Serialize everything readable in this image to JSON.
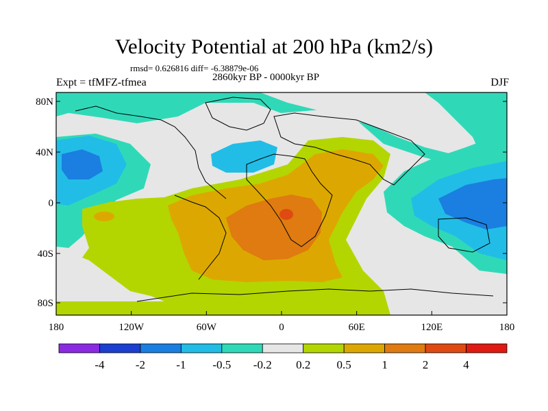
{
  "title": "Velocity Potential at 200 hPa (km2/s)",
  "stats": "rmsd= 0.626816 diff= -6.38879e-06",
  "experiment": "Expt = tfMFZ-tfmea",
  "period": "2860kyr BP - 0000kyr BP",
  "season": "DJF",
  "axes": {
    "y_ticks": [
      "80N",
      "40N",
      "0",
      "40S",
      "80S"
    ],
    "x_ticks": [
      "180",
      "120W",
      "60W",
      "0",
      "60E",
      "120E",
      "180"
    ]
  },
  "colorbar": {
    "labels": [
      "-4",
      "-2",
      "-1",
      "-0.5",
      "-0.2",
      "0.2",
      "0.5",
      "1",
      "2",
      "4"
    ],
    "colors": [
      "#8a2be2",
      "#1c3fd0",
      "#1a7fe0",
      "#21bde6",
      "#2fd9b8",
      "#e6e6e6",
      "#b3d600",
      "#dca800",
      "#df7b10",
      "#df4a12",
      "#e01a12"
    ]
  },
  "field_colors": {
    "neg_strong": "#1a7fe0",
    "neg_mid": "#21bde6",
    "neg_weak": "#2fd9b8",
    "near_zero": "#e6e6e6",
    "pos_weak": "#b3d600",
    "pos_mid": "#dca800",
    "pos_strong": "#df7b10"
  }
}
